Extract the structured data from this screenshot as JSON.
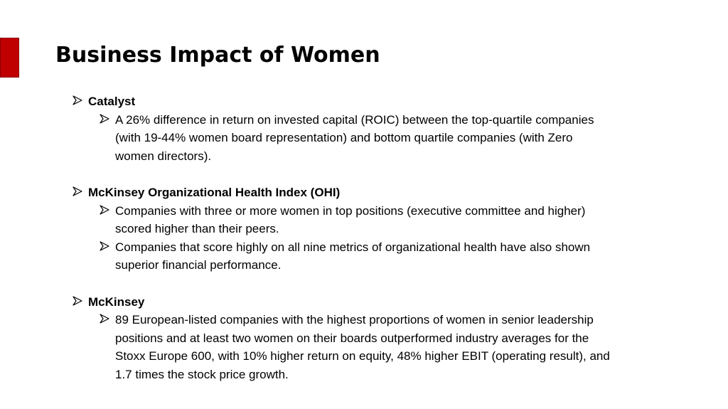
{
  "slide": {
    "title": "Business Impact of Women",
    "accent_color": "#c00000",
    "sections": [
      {
        "heading": "Catalyst",
        "bullets": [
          "A 26% difference in return on invested capital (ROIC) between the top-quartile companies (with 19-44% women board representation) and bottom quartile companies (with Zero women directors)."
        ]
      },
      {
        "heading": "McKinsey Organizational Health Index (OHI)",
        "bullets": [
          "Companies with three or more women in top positions (executive committee and higher) scored higher than their peers.",
          "Companies that score highly on all nine metrics of organizational health have also shown superior financial performance."
        ]
      },
      {
        "heading": "McKinsey",
        "bullets": [
          "89 European-listed companies with the highest proportions of women in senior leadership positions and at least two women on their boards outperformed industry averages for the Stoxx Europe 600, with 10% higher return on equity, 48% higher EBIT (operating result), and 1.7 times the stock price growth."
        ]
      }
    ]
  }
}
